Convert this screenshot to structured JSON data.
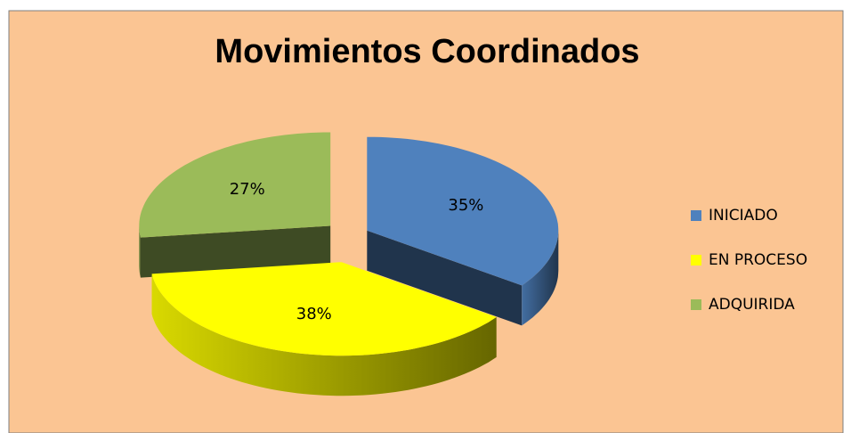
{
  "chart_data": {
    "type": "pie",
    "title": "Movimientos Coordinados",
    "categories": [
      "INICIADO",
      "EN PROCESO",
      "ADQUIRIDA"
    ],
    "values": [
      35,
      38,
      27
    ],
    "value_labels": [
      "35%",
      "38%",
      "27%"
    ],
    "colors": [
      "#4f81bd",
      "#ffff00",
      "#9bbb59"
    ],
    "legend": "right"
  }
}
